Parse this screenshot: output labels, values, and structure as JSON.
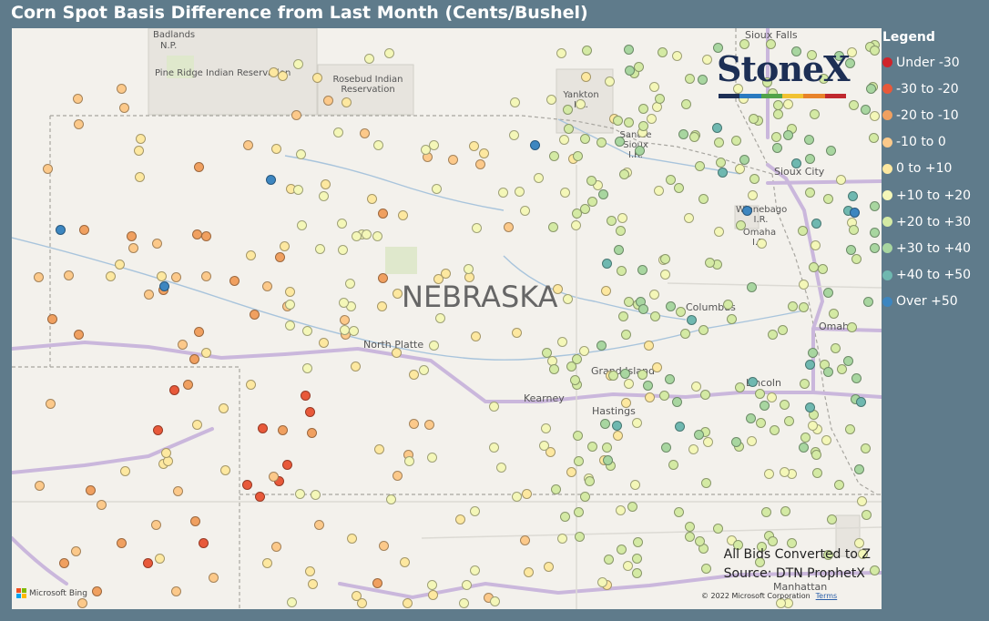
{
  "title": "Corn Spot Basis Difference from Last Month (Cents/Bushel)",
  "map": {
    "state_label": "NEBRASKA",
    "places": [
      {
        "id": "badlands",
        "text": "Badlands"
      },
      {
        "id": "badlands2",
        "text": "N.P."
      },
      {
        "id": "pine-ridge",
        "text": "Pine Ridge Indian Reservation"
      },
      {
        "id": "rosebud",
        "text": "Rosebud Indian Reservation"
      },
      {
        "id": "yankton",
        "text": "Yankton I.R."
      },
      {
        "id": "santee",
        "text": "Santee Sioux I.R."
      },
      {
        "id": "sioux-city",
        "text": "Sioux City"
      },
      {
        "id": "winnebago",
        "text": "Winnebago I.R."
      },
      {
        "id": "omaha-ir",
        "text": "Omaha I.R."
      },
      {
        "id": "columbus",
        "text": "Columbus"
      },
      {
        "id": "omaha",
        "text": "Omaha"
      },
      {
        "id": "north-platte",
        "text": "North Platte"
      },
      {
        "id": "grand-island",
        "text": "Grand Island"
      },
      {
        "id": "kearney",
        "text": "Kearney"
      },
      {
        "id": "hastings",
        "text": "Hastings"
      },
      {
        "id": "lincoln",
        "text": "Lincoln"
      },
      {
        "id": "sioux-falls",
        "text": "Sioux Falls"
      },
      {
        "id": "manhattan",
        "text": "Manhattan"
      }
    ],
    "logo_text": "StoneX",
    "note_line1": "All Bids Converted to Z",
    "note_line2": "Source: DTN ProphetX",
    "copyright": "© 2022 Microsoft Corporation",
    "terms": "Terms",
    "bing": "Microsoft Bing"
  },
  "legend": {
    "title": "Legend",
    "items": [
      {
        "label": "Under -30",
        "color": "#d0232a"
      },
      {
        "label": "-30 to -20",
        "color": "#e8593a"
      },
      {
        "label": "-20 to -10",
        "color": "#f0a060"
      },
      {
        "label": "-10 to 0",
        "color": "#fcc98a"
      },
      {
        "label": "0 to +10",
        "color": "#fde8a0"
      },
      {
        "label": "+10 to +20",
        "color": "#f4f7b8"
      },
      {
        "label": "+20 to +30",
        "color": "#d4eaa4"
      },
      {
        "label": "+30 to +40",
        "color": "#a8d6a0"
      },
      {
        "label": "+40 to +50",
        "color": "#6fb8b0"
      },
      {
        "label": "Over +50",
        "color": "#3d86c0"
      }
    ]
  },
  "points_by_class": {
    "Under -30": 0,
    "-30 to -20": 11,
    "-20 to -10": 24,
    "-10 to 0": 44,
    "0 to +10": 70,
    "+10 to +20": 120,
    "+20 to +30": 150,
    "+30 to +40": 50,
    "+40 to +50": 14,
    "Over +50": 6
  }
}
